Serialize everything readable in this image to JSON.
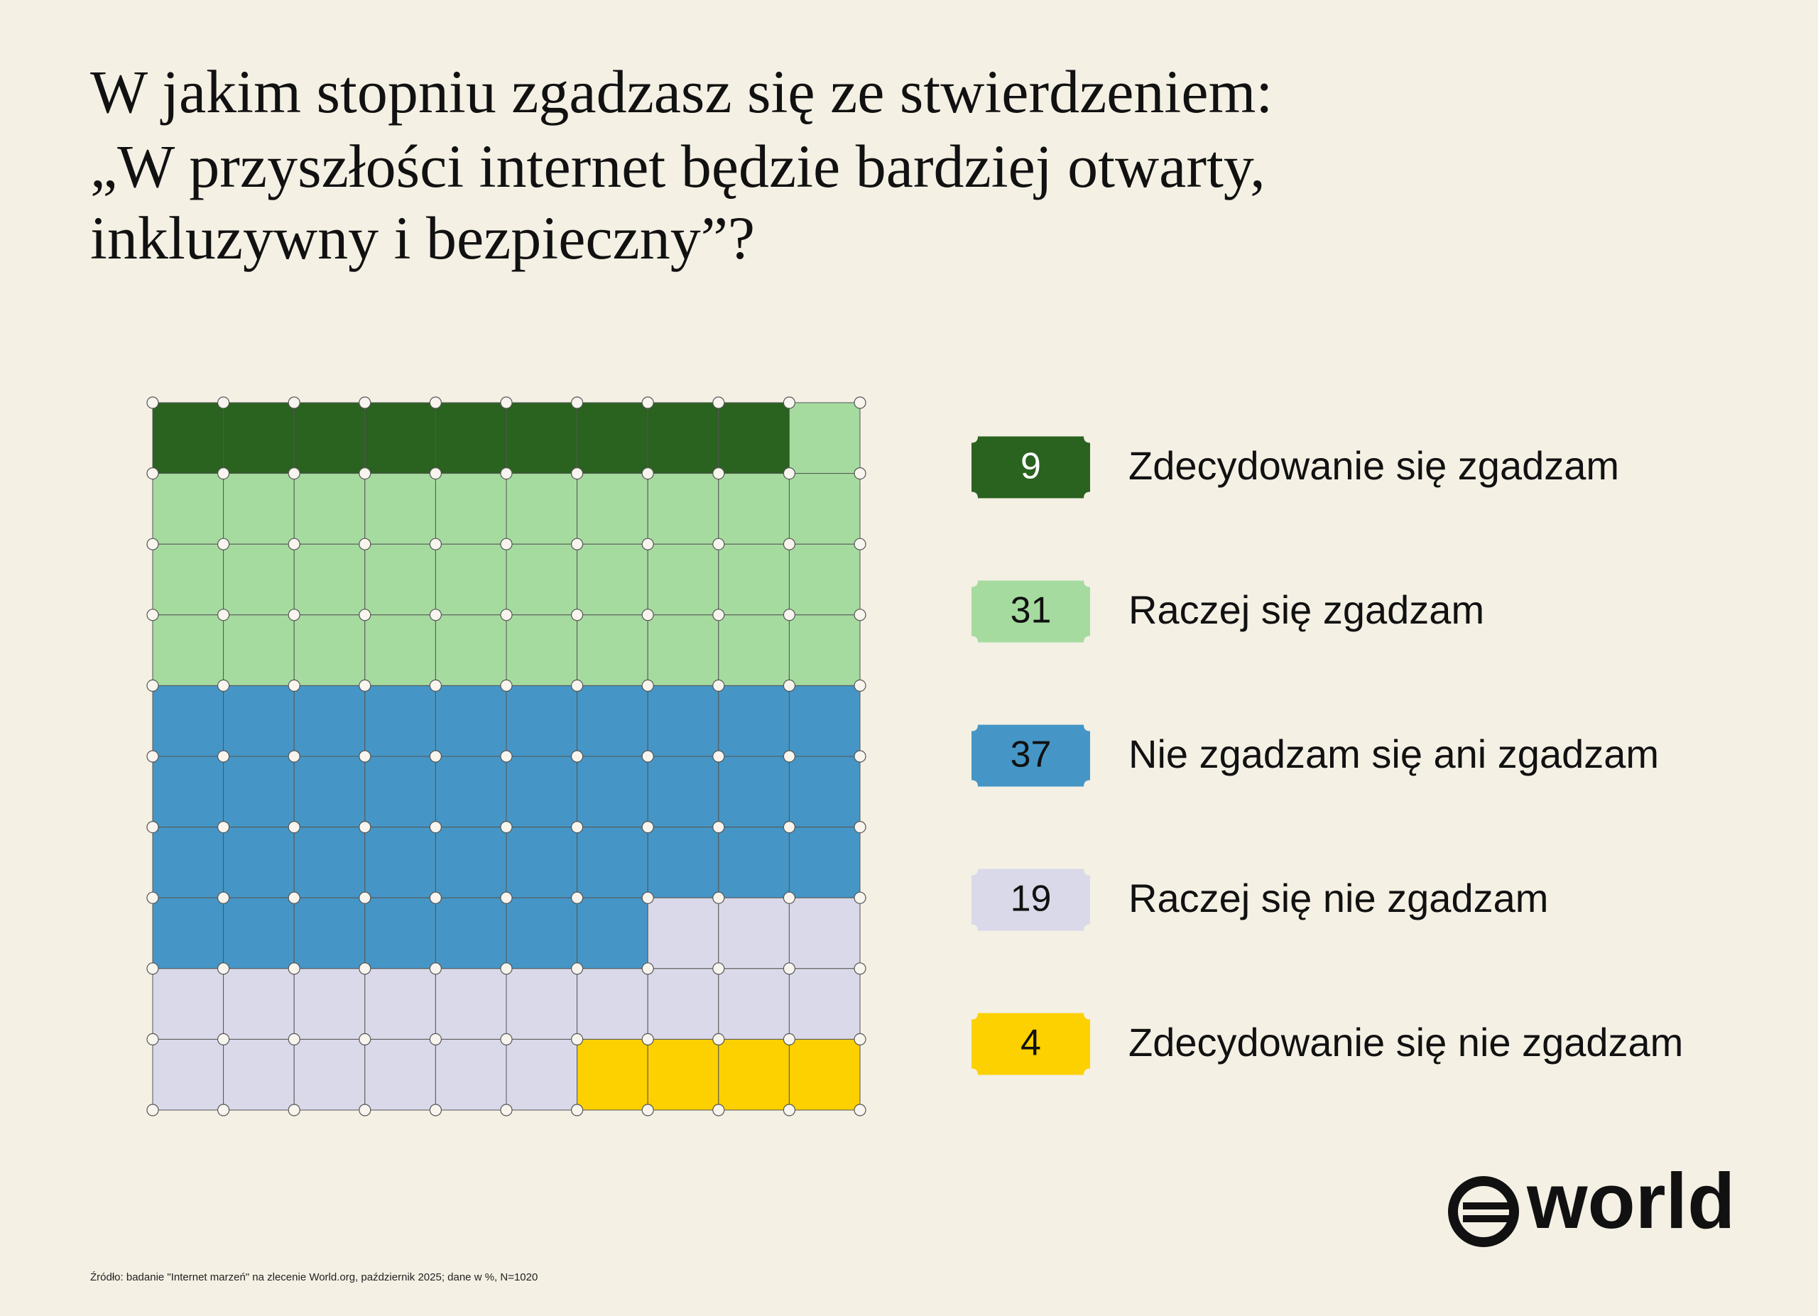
{
  "chart_data": {
    "type": "waffle",
    "title": [
      "W jakim stopniu zgadzasz się ze stwierdzeniem:",
      "„W przyszłości internet będzie bardziej otwarty,",
      "inkluzywny i bezpieczny”?"
    ],
    "categories": [
      "Zdecydowanie się zgadzam",
      "Raczej się zgadzam",
      "Nie zgadzam się ani zgadzam",
      "Raczej się nie zgadzam",
      "Zdecydowanie się nie zgadzam"
    ],
    "values": [
      9,
      31,
      37,
      19,
      4
    ],
    "colors": [
      "#2a621f",
      "#a6dba0",
      "#4596c6",
      "#d9d9ea",
      "#fdd000"
    ],
    "value_text_colors": [
      "#ffffff",
      "#111111",
      "#111111",
      "#111111",
      "#111111"
    ],
    "source": "Źródło: badanie \"Internet marzeń\" na zlecenie World.org, październik 2025; dane w %, N=1020",
    "logo": "world"
  }
}
